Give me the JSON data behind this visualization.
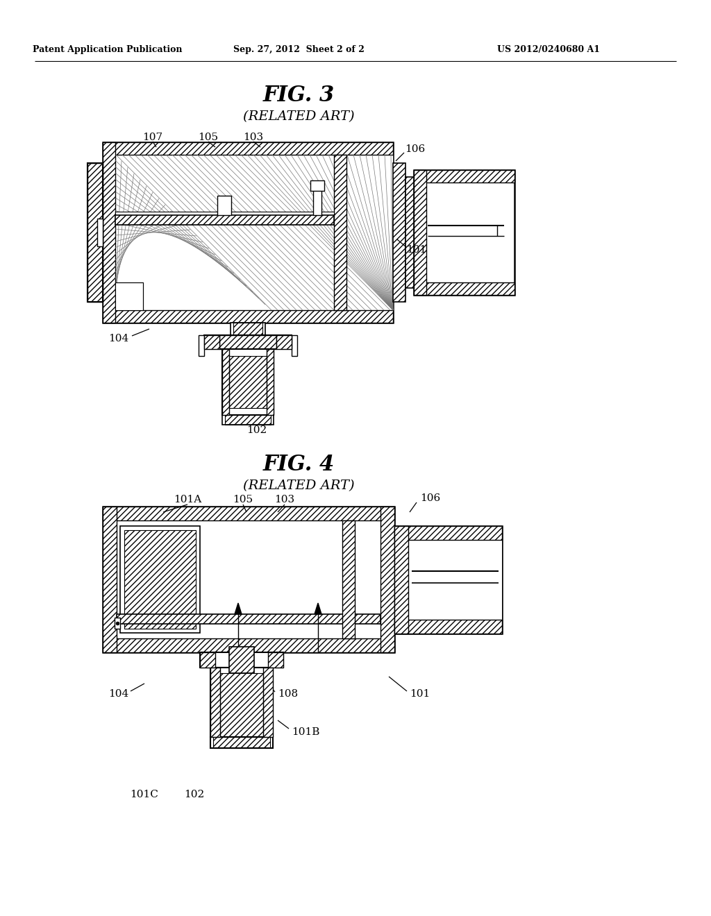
{
  "header_left": "Patent Application Publication",
  "header_mid": "Sep. 27, 2012  Sheet 2 of 2",
  "header_right": "US 2012/0240680 A1",
  "fig3_title": "FIG. 3",
  "fig3_subtitle": "(RELATED ART)",
  "fig4_title": "FIG. 4",
  "fig4_subtitle": "(RELATED ART)",
  "background": "#ffffff",
  "line_color": "#000000"
}
